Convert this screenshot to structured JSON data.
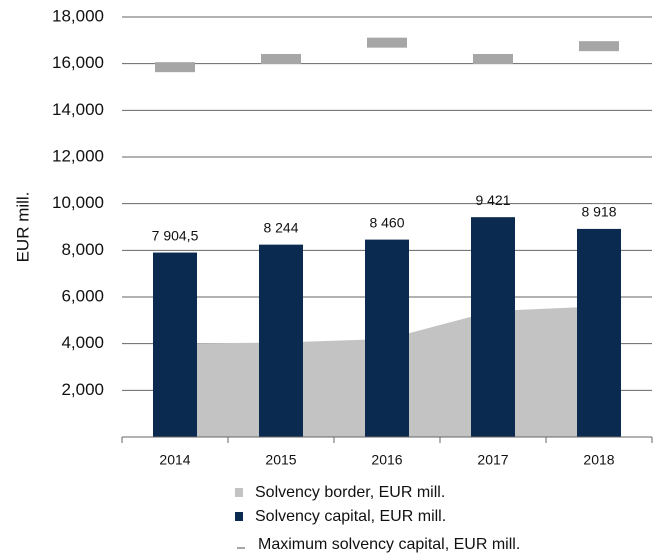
{
  "chart_data": {
    "type": "bar",
    "y_label": "EUR mill.",
    "categories": [
      "2014",
      "2015",
      "2016",
      "2017",
      "2018"
    ],
    "series": [
      {
        "name": "Solvency border, EUR mill.",
        "type": "area",
        "color": "#c3c3c3",
        "values": [
          4000,
          4050,
          4200,
          5400,
          5600
        ]
      },
      {
        "name": "Solvency capital, EUR mill.",
        "type": "bar",
        "color": "#0b2a4f",
        "values": [
          7904.5,
          8244,
          8460,
          9421,
          8918
        ],
        "value_labels": [
          "7 904,5",
          "8 244",
          "8 460",
          "9 421",
          "8 918"
        ]
      },
      {
        "name": "Maximum solvency capital, EUR mill.",
        "type": "marker",
        "color": "#a6a6a6",
        "values": [
          15850,
          16200,
          16900,
          16200,
          16750
        ]
      }
    ],
    "ylim": [
      0,
      18000
    ],
    "yticks": [
      {
        "value": 2000,
        "label": "2,000"
      },
      {
        "value": 4000,
        "label": "4,000"
      },
      {
        "value": 6000,
        "label": "6,000"
      },
      {
        "value": 8000,
        "label": "8,000"
      },
      {
        "value": 10000,
        "label": "10,000"
      },
      {
        "value": 12000,
        "label": "12,000"
      },
      {
        "value": 14000,
        "label": "14,000"
      },
      {
        "value": 16000,
        "label": "16,000"
      },
      {
        "value": 18000,
        "label": "18,000"
      }
    ],
    "grid": true,
    "legend": "bottom"
  }
}
